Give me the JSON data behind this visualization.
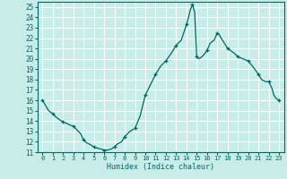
{
  "xlabel": "Humidex (Indice chaleur)",
  "ylabel": "",
  "xlim": [
    -0.5,
    23.5
  ],
  "ylim": [
    11,
    25.5
  ],
  "xticks": [
    0,
    1,
    2,
    3,
    4,
    5,
    6,
    7,
    8,
    9,
    10,
    11,
    12,
    13,
    14,
    15,
    16,
    17,
    18,
    19,
    20,
    21,
    22,
    23
  ],
  "yticks": [
    11,
    12,
    13,
    14,
    15,
    16,
    17,
    18,
    19,
    20,
    21,
    22,
    23,
    24,
    25
  ],
  "background_color": "#c8ede8",
  "grid_color": "#ffffff",
  "line_color": "#006666",
  "marker_color": "#006666",
  "x": [
    0,
    0.3,
    0.6,
    1.0,
    1.3,
    1.7,
    2.0,
    2.3,
    2.7,
    3.0,
    3.3,
    3.7,
    4.0,
    4.3,
    4.7,
    5.0,
    5.3,
    5.7,
    6.0,
    6.3,
    6.7,
    7.0,
    7.3,
    7.7,
    8.0,
    8.5,
    9.0,
    9.5,
    10.0,
    10.5,
    11.0,
    11.5,
    12.0,
    12.5,
    13.0,
    13.5,
    14.0,
    14.2,
    14.4,
    14.6,
    14.8,
    15.0,
    15.2,
    15.5,
    15.7,
    16.0,
    16.3,
    16.7,
    17.0,
    17.2,
    17.5,
    17.7,
    18.0,
    18.3,
    18.7,
    19.0,
    19.5,
    20.0,
    20.5,
    21.0,
    21.3,
    21.7,
    22.0,
    22.3,
    22.5,
    22.7,
    23.0
  ],
  "y": [
    16.0,
    15.5,
    15.0,
    14.7,
    14.4,
    14.1,
    13.9,
    13.8,
    13.6,
    13.5,
    13.2,
    12.8,
    12.2,
    11.9,
    11.7,
    11.5,
    11.4,
    11.3,
    11.2,
    11.2,
    11.3,
    11.5,
    11.8,
    12.0,
    12.5,
    13.0,
    13.3,
    14.5,
    16.5,
    17.5,
    18.5,
    19.3,
    19.8,
    20.5,
    21.3,
    21.8,
    23.3,
    24.0,
    24.8,
    25.2,
    24.5,
    20.2,
    20.0,
    20.2,
    20.4,
    20.8,
    21.5,
    21.8,
    22.5,
    22.3,
    21.8,
    21.5,
    21.0,
    20.8,
    20.5,
    20.2,
    20.0,
    19.8,
    19.2,
    18.5,
    18.0,
    17.8,
    17.8,
    17.2,
    16.5,
    16.2,
    16.0
  ],
  "marker_x": [
    0,
    1,
    2,
    3,
    4,
    5,
    6,
    7,
    8,
    9,
    10,
    11,
    12,
    13,
    14,
    14.5,
    15,
    16,
    17,
    18,
    19,
    20,
    21,
    22,
    23
  ],
  "marker_y": [
    16.0,
    14.7,
    13.9,
    13.5,
    12.2,
    11.5,
    11.2,
    11.5,
    12.5,
    13.3,
    16.5,
    18.5,
    19.8,
    21.3,
    23.3,
    25.2,
    20.2,
    20.8,
    22.5,
    21.0,
    20.2,
    19.8,
    18.5,
    17.8,
    16.0
  ]
}
